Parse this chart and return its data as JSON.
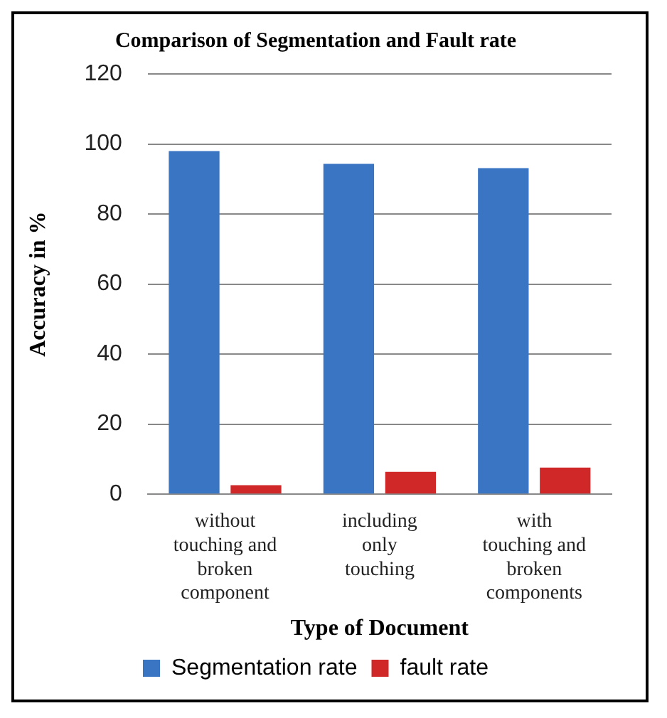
{
  "chart_data": {
    "type": "bar",
    "title": "Comparison of Segmentation and Fault rate",
    "xlabel": "Type of Document",
    "ylabel": "Accuracy in %",
    "categories": [
      "without touching and broken component",
      "including only touching",
      "with touching and broken components"
    ],
    "series": [
      {
        "name": "Segmentation rate",
        "color": "#3a75c4",
        "values": [
          98,
          94.3,
          93.1
        ]
      },
      {
        "name": "fault rate",
        "color": "#d02828",
        "values": [
          2.6,
          6.4,
          7.6
        ]
      }
    ],
    "ylim": [
      0,
      120
    ],
    "yticks": [
      0,
      20,
      40,
      60,
      80,
      100,
      120
    ],
    "grid": "y",
    "legend": "bottom"
  }
}
